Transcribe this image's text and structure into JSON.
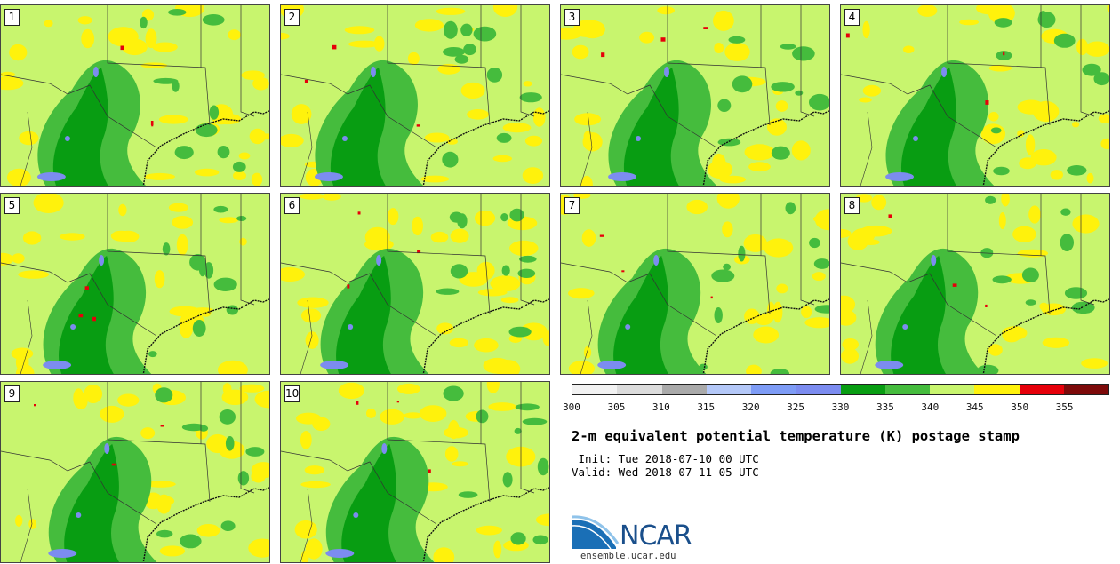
{
  "panels": [
    {
      "label": "1"
    },
    {
      "label": "2"
    },
    {
      "label": "3"
    },
    {
      "label": "4"
    },
    {
      "label": "5"
    },
    {
      "label": "6"
    },
    {
      "label": "7"
    },
    {
      "label": "8"
    },
    {
      "label": "9"
    },
    {
      "label": "10"
    }
  ],
  "colorbar": {
    "colors": [
      "#f2f2f2",
      "#dcdcdc",
      "#aaaaaa",
      "#b4c8f8",
      "#7e9cf6",
      "#7c8cf0",
      "#089d12",
      "#45bc3d",
      "#c8f56e",
      "#fff20c",
      "#e6000a",
      "#7d0a0a"
    ],
    "ticks": [
      "300",
      "305",
      "310",
      "315",
      "320",
      "325",
      "330",
      "335",
      "340",
      "345",
      "350",
      "355"
    ]
  },
  "title": "2-m equivalent potential temperature (K) postage stamp",
  "init": " Init: Tue 2018-07-10 00 UTC",
  "valid": "Valid: Wed 2018-07-11 05 UTC",
  "logo": {
    "text": "NCAR",
    "url": "ensemble.ucar.edu",
    "color": "#1a4f8b"
  }
}
